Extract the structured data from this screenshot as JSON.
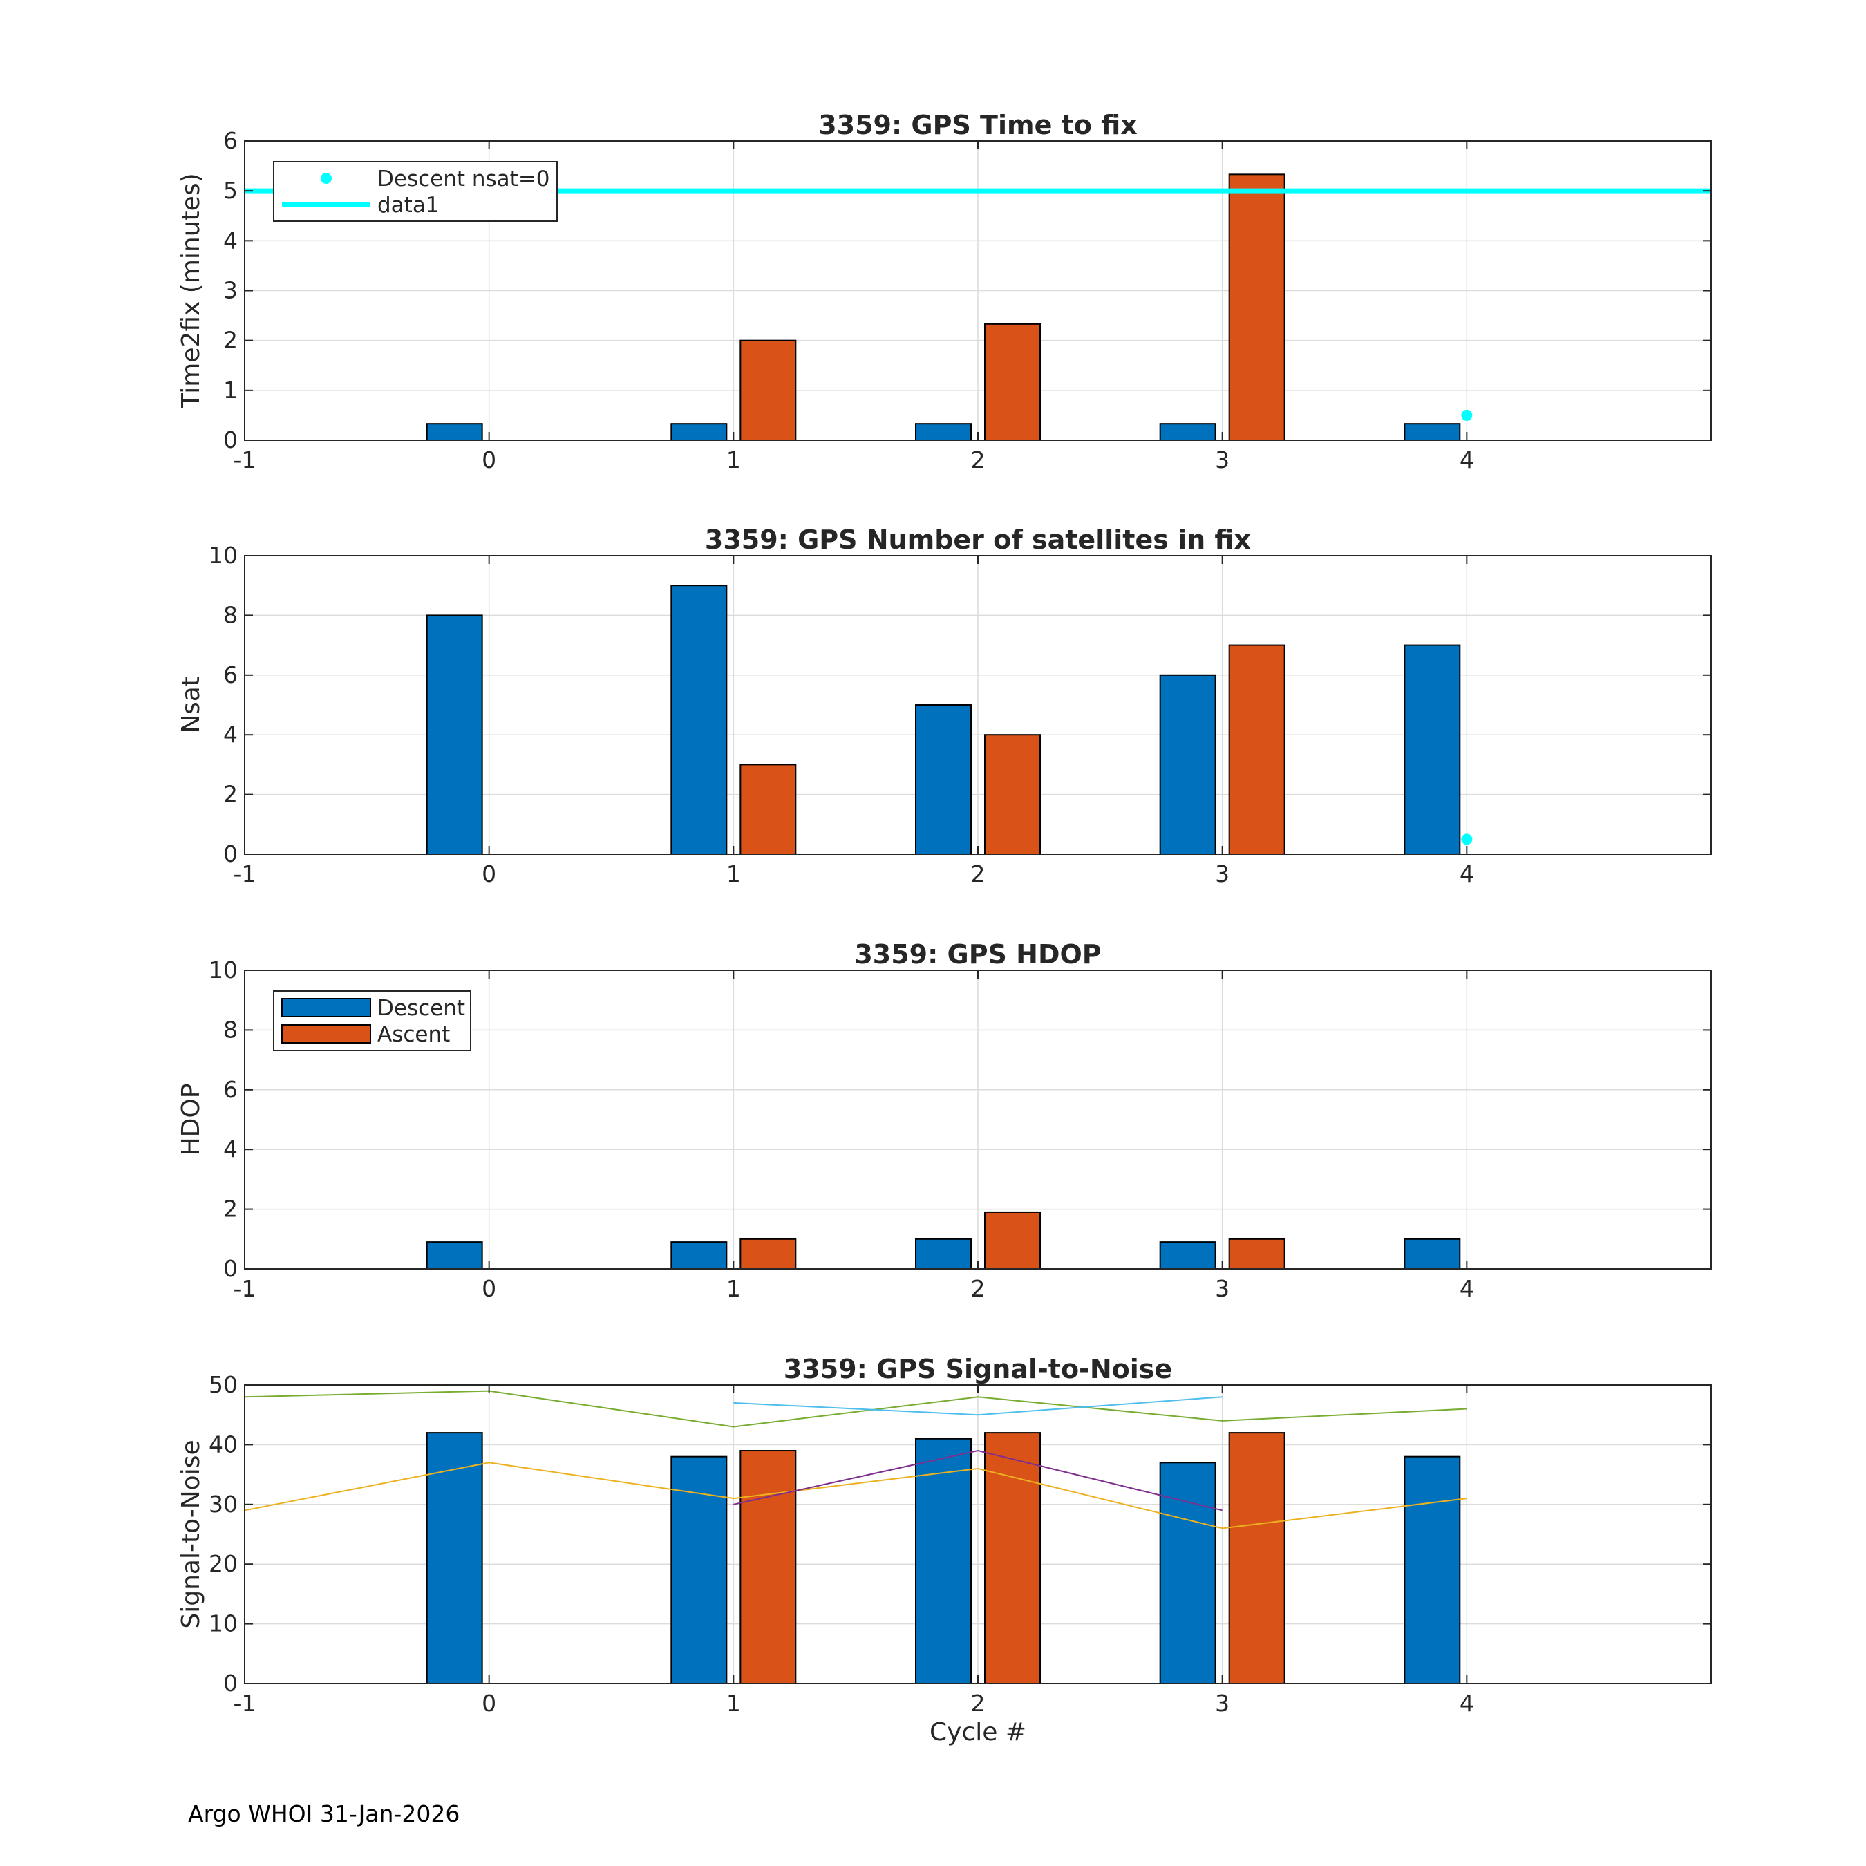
{
  "chart_data": [
    {
      "type": "bar",
      "title": "3359: GPS Time to fix",
      "xlabel": "",
      "ylabel": "Time2fix (minutes)",
      "xlim": [
        -1,
        5
      ],
      "ylim": [
        0,
        6
      ],
      "xticks": [
        -1,
        0,
        1,
        2,
        3,
        4
      ],
      "yticks": [
        0,
        1,
        2,
        3,
        4,
        5,
        6
      ],
      "grid": true,
      "categories": [
        0,
        1,
        2,
        3,
        4
      ],
      "series": [
        {
          "name": "Descent",
          "color": "#0072BD",
          "values": [
            0.33,
            0.33,
            0.33,
            0.33,
            0.33
          ]
        },
        {
          "name": "Ascent",
          "color": "#D95319",
          "values": [
            null,
            2.0,
            2.33,
            5.33,
            null
          ]
        }
      ],
      "markers": [
        {
          "name": "Descent nsat=0",
          "color": "#00FFFF",
          "x": 4,
          "y": 0.5
        }
      ],
      "hlines": [
        {
          "name": "data1",
          "color": "#00FFFF",
          "y": 5
        }
      ],
      "legend": {
        "position": "top-left",
        "entries": [
          "Descent nsat=0",
          "data1"
        ]
      }
    },
    {
      "type": "bar",
      "title": "3359: GPS Number of satellites in fix",
      "xlabel": "",
      "ylabel": "Nsat",
      "xlim": [
        -1,
        5
      ],
      "ylim": [
        0,
        10
      ],
      "xticks": [
        -1,
        0,
        1,
        2,
        3,
        4
      ],
      "yticks": [
        0,
        2,
        4,
        6,
        8,
        10
      ],
      "grid": true,
      "categories": [
        0,
        1,
        2,
        3,
        4
      ],
      "series": [
        {
          "name": "Descent",
          "color": "#0072BD",
          "values": [
            8,
            9,
            5,
            6,
            7
          ]
        },
        {
          "name": "Ascent",
          "color": "#D95319",
          "values": [
            null,
            3,
            4,
            7,
            null
          ]
        }
      ],
      "markers": [
        {
          "name": "Descent nsat=0",
          "color": "#00FFFF",
          "x": 4,
          "y": 0.5
        }
      ]
    },
    {
      "type": "bar",
      "title": "3359: GPS HDOP",
      "xlabel": "",
      "ylabel": "HDOP",
      "xlim": [
        -1,
        5
      ],
      "ylim": [
        0,
        10
      ],
      "xticks": [
        -1,
        0,
        1,
        2,
        3,
        4
      ],
      "yticks": [
        0,
        2,
        4,
        6,
        8,
        10
      ],
      "grid": true,
      "categories": [
        0,
        1,
        2,
        3,
        4
      ],
      "series": [
        {
          "name": "Descent",
          "color": "#0072BD",
          "values": [
            0.9,
            0.9,
            1.0,
            0.9,
            1.0
          ]
        },
        {
          "name": "Ascent",
          "color": "#D95319",
          "values": [
            null,
            1.0,
            1.9,
            1.0,
            null
          ]
        }
      ],
      "legend": {
        "position": "top-left",
        "entries": [
          "Descent",
          "Ascent"
        ]
      }
    },
    {
      "type": "bar",
      "title": "3359: GPS Signal-to-Noise",
      "xlabel": "Cycle #",
      "ylabel": "Signal-to-Noise",
      "xlim": [
        -1,
        5
      ],
      "ylim": [
        0,
        50
      ],
      "xticks": [
        -1,
        0,
        1,
        2,
        3,
        4
      ],
      "yticks": [
        0,
        10,
        20,
        30,
        40,
        50
      ],
      "grid": true,
      "categories": [
        0,
        1,
        2,
        3,
        4
      ],
      "series": [
        {
          "name": "Descent",
          "color": "#0072BD",
          "values": [
            42,
            38,
            41,
            37,
            38
          ]
        },
        {
          "name": "Ascent",
          "color": "#D95319",
          "values": [
            null,
            39,
            42,
            42,
            null
          ]
        }
      ],
      "lines": [
        {
          "color": "#77AC30",
          "x": [
            -1,
            0,
            1,
            2,
            3,
            4
          ],
          "y": [
            48,
            49,
            43,
            48,
            44,
            46
          ]
        },
        {
          "color": "#4DBEEE",
          "x": [
            1,
            2,
            3
          ],
          "y": [
            47,
            45,
            48
          ]
        },
        {
          "color": "#EDB120",
          "x": [
            -1,
            0,
            1,
            2,
            3,
            4
          ],
          "y": [
            29,
            37,
            31,
            36,
            26,
            31
          ]
        },
        {
          "color": "#7E2F8E",
          "x": [
            1,
            2,
            3
          ],
          "y": [
            30,
            39,
            29
          ]
        }
      ]
    }
  ],
  "footer": "Argo WHOI 31-Jan-2026"
}
